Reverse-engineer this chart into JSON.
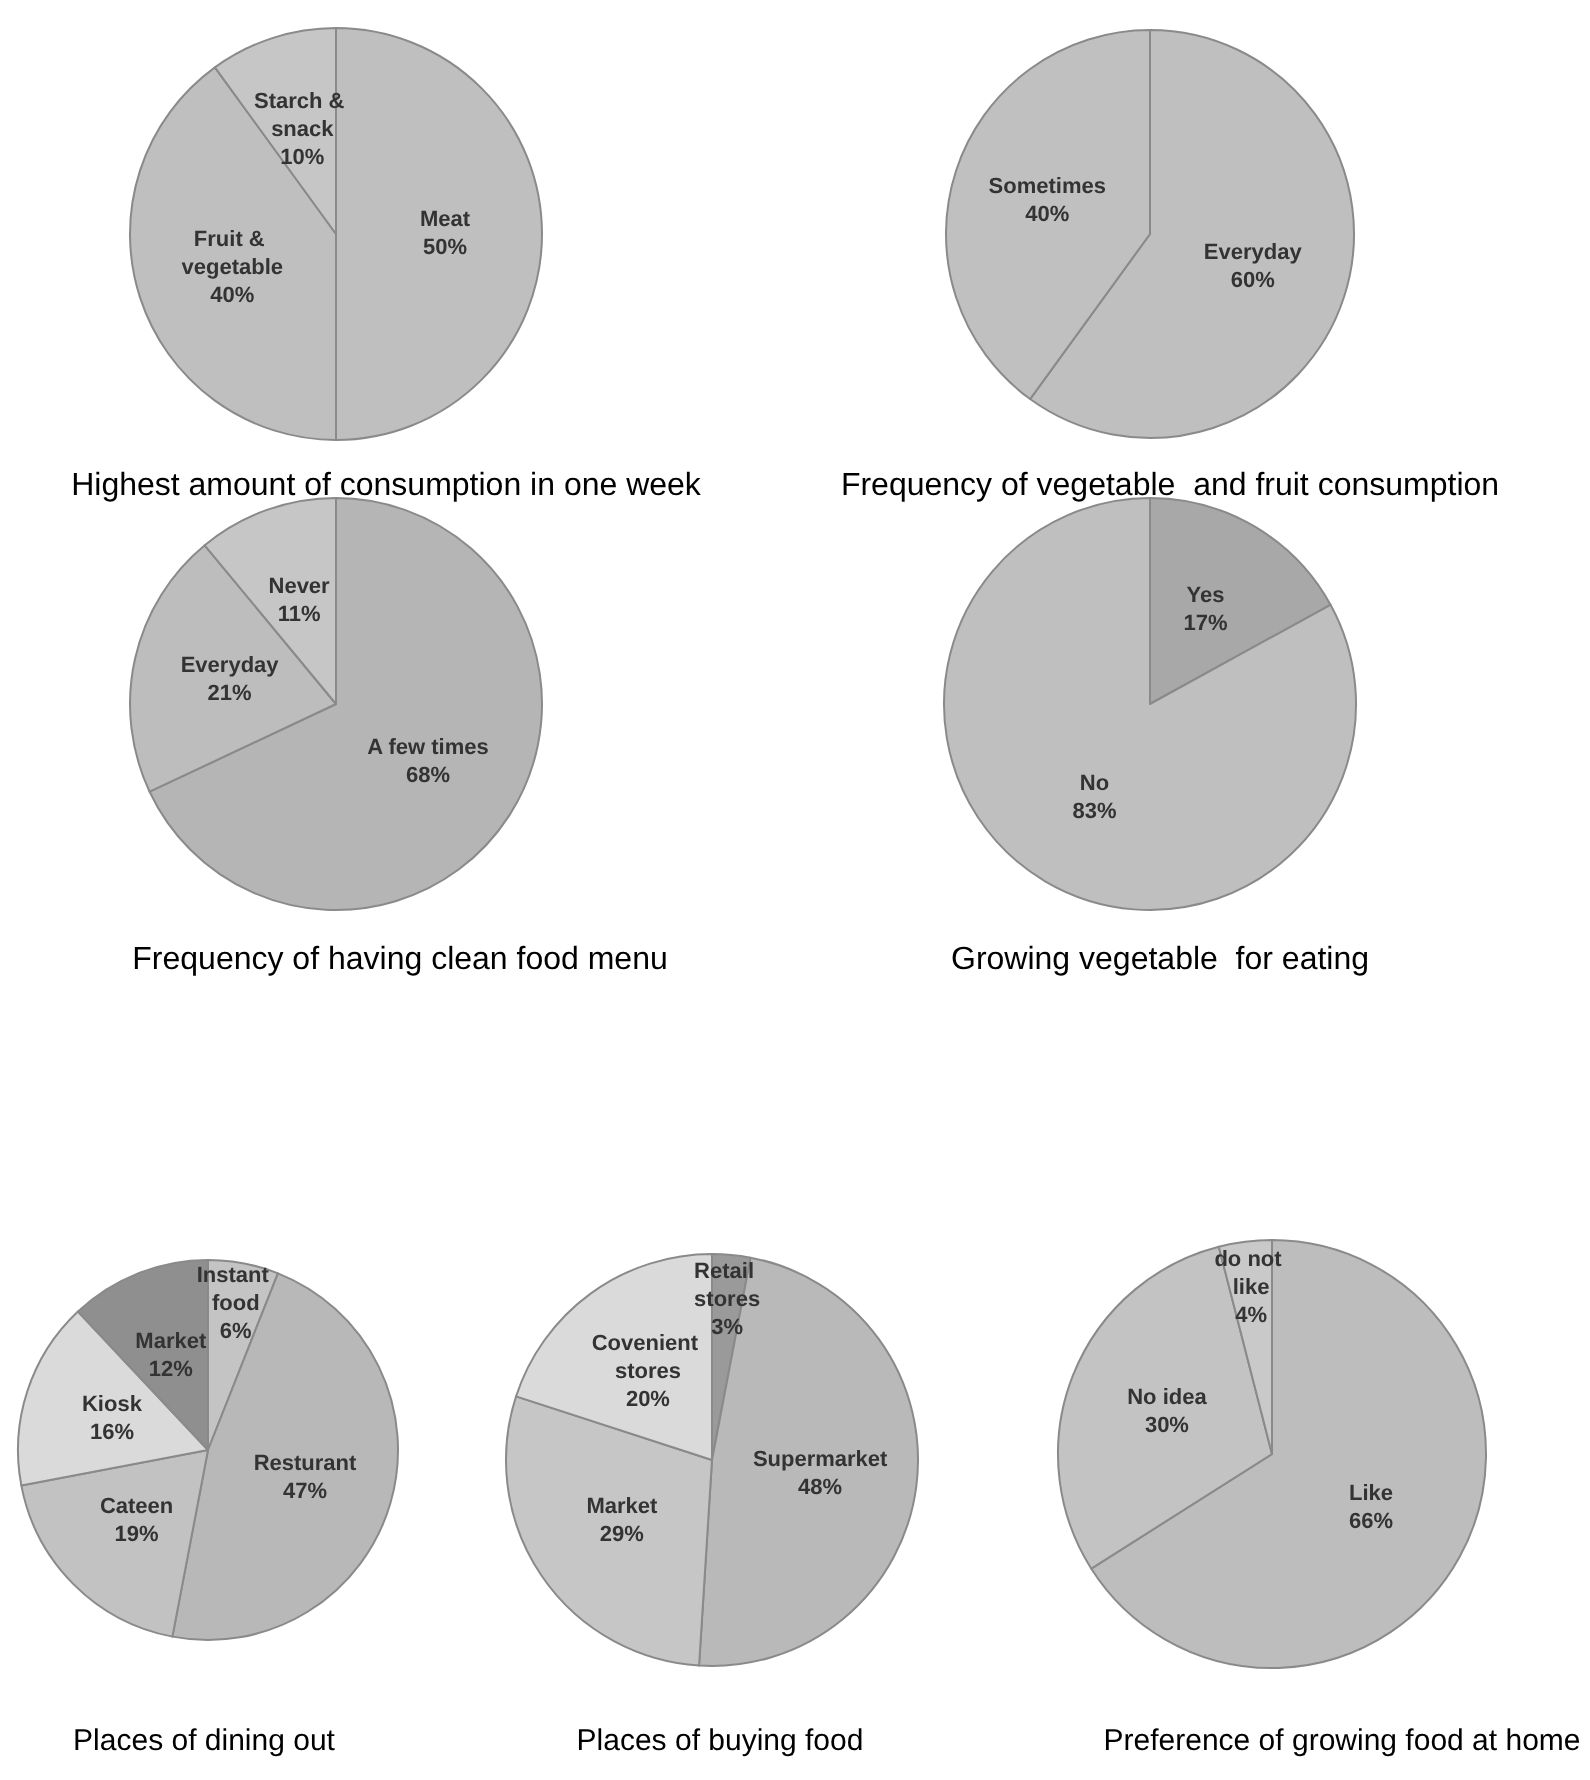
{
  "chart_data": [
    {
      "type": "pie",
      "title": "Highest amount of consumption in one week",
      "categories": [
        "Meat",
        "Fruit & vegetable",
        "Starch & snack"
      ],
      "values": [
        50,
        40,
        10
      ],
      "value_labels": [
        "50%",
        "40%",
        "10%"
      ],
      "colors": [
        "#bfbfbf",
        "#bfbfbf",
        "#c6c6c6"
      ],
      "legend": false
    },
    {
      "type": "pie",
      "title": "Frequency of vegetable  and fruit consumption",
      "categories": [
        "Everyday",
        "Sometimes"
      ],
      "values": [
        60,
        40
      ],
      "value_labels": [
        "60%",
        "40%"
      ],
      "colors": [
        "#bfbfbf",
        "#c0c0c0"
      ],
      "legend": false
    },
    {
      "type": "pie",
      "title": "Frequency of having clean food menu",
      "categories": [
        "A few times",
        "Everyday",
        "Never"
      ],
      "values": [
        68,
        21,
        11
      ],
      "value_labels": [
        "68%",
        "21%",
        "11%"
      ],
      "colors": [
        "#b5b5b5",
        "#bdbdbd",
        "#c6c6c6"
      ],
      "legend": false
    },
    {
      "type": "pie",
      "title": "Growing vegetable  for eating",
      "categories": [
        "Yes",
        "No"
      ],
      "values": [
        17,
        83
      ],
      "value_labels": [
        "17%",
        "83%"
      ],
      "colors": [
        "#a8a8a8",
        "#bfbfbf"
      ],
      "legend": false
    },
    {
      "type": "pie",
      "title": "Places of dining out",
      "categories": [
        "Instant food",
        "Resturant",
        "Cateen",
        "Kiosk",
        "Market"
      ],
      "values": [
        6,
        47,
        19,
        16,
        12
      ],
      "value_labels": [
        "6%",
        "47%",
        "19%",
        "16%",
        "12%"
      ],
      "colors": [
        "#c4c4c4",
        "#b8b8b8",
        "#c2c2c2",
        "#dadada",
        "#8f8f8f"
      ],
      "legend": false
    },
    {
      "type": "pie",
      "title": "Places of buying food",
      "categories": [
        "Retail stores",
        "Supermarket",
        "Market",
        "Covenient stores"
      ],
      "values": [
        3,
        48,
        29,
        20
      ],
      "value_labels": [
        "3%",
        "48%",
        "29%",
        "20%"
      ],
      "colors": [
        "#9a9a9a",
        "#b9b9b9",
        "#c6c6c6",
        "#dadada"
      ],
      "legend": false
    },
    {
      "type": "pie",
      "title": "Preference of growing food at home",
      "categories": [
        "Like",
        "No idea",
        "do not like"
      ],
      "values": [
        66,
        30,
        4
      ],
      "value_labels": [
        "66%",
        "30%",
        "4%"
      ],
      "colors": [
        "#bdbdbd",
        "#c3c3c3",
        "#c9c9c9"
      ],
      "legend": false
    }
  ]
}
